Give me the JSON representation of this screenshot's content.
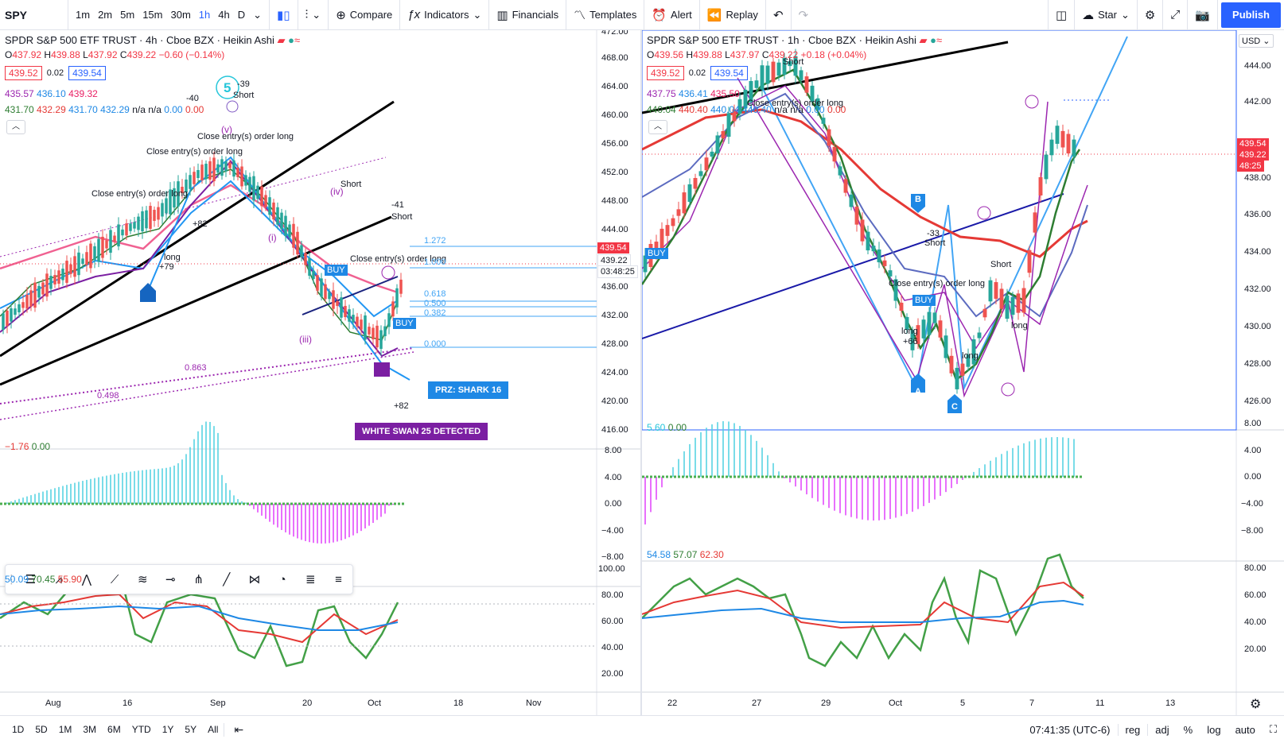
{
  "toolbar": {
    "symbol": "SPY",
    "intervals": [
      "1m",
      "2m",
      "5m",
      "15m",
      "30m",
      "1h",
      "4h",
      "D"
    ],
    "active_interval": "1h",
    "compare": "Compare",
    "indicators": "Indicators",
    "financials": "Financials",
    "templates": "Templates",
    "alert": "Alert",
    "replay": "Replay",
    "star": "Star",
    "publish": "Publish"
  },
  "left_chart": {
    "title": "SPDR S&P 500 ETF TRUST · 4h · Cboe BZX · Heikin Ashi",
    "ohlc": {
      "o": "437.92",
      "h": "439.88",
      "l": "437.92",
      "c": "439.22",
      "chg": "−0.60 (−0.14%)"
    },
    "bid": "439.52",
    "spread": "0.02",
    "ask": "439.54",
    "ma1": [
      "435.57",
      "436.10",
      "439.32"
    ],
    "ma2": [
      "431.70",
      "432.29",
      "431.70",
      "432.29",
      "n/a",
      "n/a",
      "0.00",
      "0.00"
    ],
    "price_axis": [
      "472.00",
      "468.00",
      "464.00",
      "460.00",
      "456.00",
      "452.00",
      "448.00",
      "444.00",
      "440.00",
      "436.00",
      "432.00",
      "428.00",
      "424.00",
      "420.00",
      "416.00"
    ],
    "price_tag_1": "439.54",
    "price_tag_2": "439.22",
    "price_tag_3": "03:48:25",
    "fib_levels": [
      "1.272",
      "1.000",
      "0.618",
      "0.500",
      "0.382",
      "0.000"
    ],
    "fib_other": [
      "0.863",
      "0.498"
    ],
    "badge_prz": "PRZ: SHARK 16",
    "badge_swan": "WHITE SWAN 25 DETECTED",
    "wave_labels": [
      "5",
      "(v)",
      "(i)",
      "(iii)",
      "(iv)",
      "(v)"
    ],
    "annotations": [
      "Close entry(s) order long",
      "Short",
      "long",
      "-40",
      "-39",
      "-41",
      "+80",
      "+79",
      "+82",
      "BUY"
    ],
    "macd_legend": [
      "−1.76",
      "0.00"
    ],
    "macd_axis": [
      "8.00",
      "4.00",
      "0.00",
      "−4.00",
      "−8.00"
    ],
    "rsi_legend": [
      "50.09",
      "70.45",
      "55.90"
    ],
    "rsi_axis": [
      "100.00",
      "80.00",
      "60.00",
      "40.00",
      "20.00"
    ],
    "time_axis": [
      "Aug",
      "16",
      "Sep",
      "20",
      "Oct",
      "18",
      "Nov"
    ]
  },
  "right_chart": {
    "title": "SPDR S&P 500 ETF TRUST · 1h · Cboe BZX · Heikin Ashi",
    "ohlc": {
      "o": "439.56",
      "h": "439.88",
      "l": "437.97",
      "c": "439.22",
      "chg": "+0.18 (+0.04%)"
    },
    "bid": "439.52",
    "spread": "0.02",
    "ask": "439.54",
    "ma1": [
      "437.75",
      "436.41",
      "435.50"
    ],
    "ma2": [
      "440.04",
      "440.40",
      "440.04",
      "440.40",
      "n/a",
      "n/a",
      "0.00",
      "0.00"
    ],
    "price_axis": [
      "444.00",
      "442.00",
      "440.00",
      "438.00",
      "436.00",
      "434.00",
      "432.00",
      "430.00",
      "428.00",
      "426.00"
    ],
    "currency": "USD",
    "price_tag_1": "439.54",
    "price_tag_2": "439.22",
    "price_tag_3": "48:25",
    "points": [
      "A",
      "B",
      "C"
    ],
    "annotations": [
      "Close entry(s) order long",
      "Short",
      "long",
      "-33",
      "+66",
      "BUY"
    ],
    "macd_legend": [
      "5.60",
      "0.00"
    ],
    "macd_axis": [
      "8.00",
      "4.00",
      "0.00",
      "−4.00",
      "−8.00"
    ],
    "rsi_legend": [
      "54.58",
      "57.07",
      "62.30"
    ],
    "rsi_axis": [
      "80.00",
      "60.00",
      "40.00",
      "20.00"
    ],
    "time_axis": [
      "22",
      "27",
      "29",
      "Oct",
      "5",
      "7",
      "11",
      "13"
    ]
  },
  "bottom": {
    "ranges": [
      "1D",
      "5D",
      "1M",
      "3M",
      "6M",
      "YTD",
      "1Y",
      "5Y",
      "All"
    ],
    "clock": "07:41:35 (UTC-6)",
    "reg": "reg",
    "adj": "adj",
    "percent": "%",
    "log": "log",
    "auto": "auto"
  }
}
